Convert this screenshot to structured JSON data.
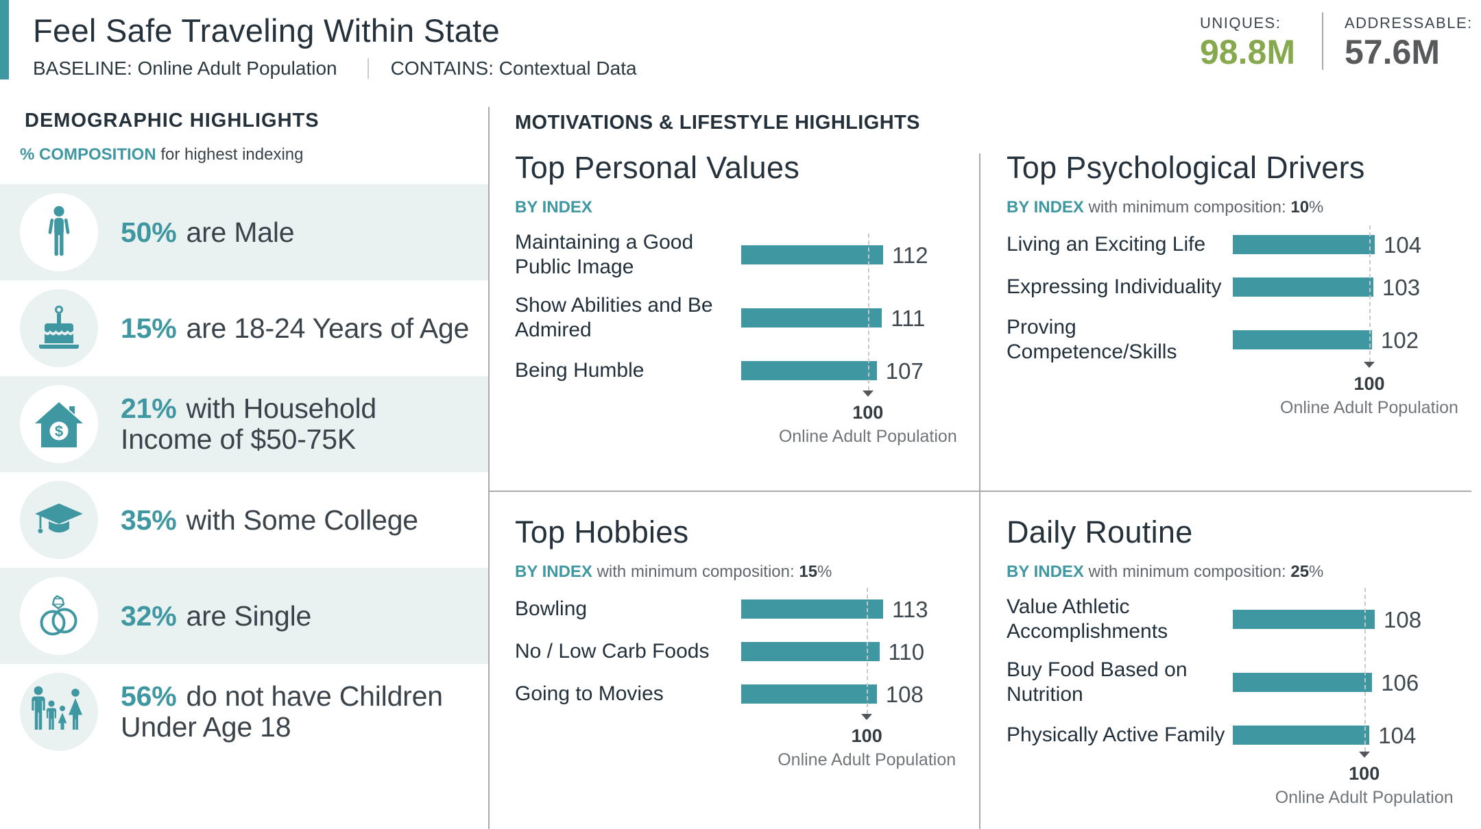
{
  "header": {
    "title": "Feel Safe Traveling Within State",
    "baseline": "BASELINE: Online Adult Population",
    "contains": "CONTAINS: Contextual Data",
    "stats": {
      "uniques_label": "UNIQUES:",
      "uniques_value": "98.8M",
      "uniques_color": "#85A94C",
      "addressable_label": "ADDRESSABLE:",
      "addressable_value": "57.6M",
      "addressable_color": "#58595B"
    }
  },
  "demographics": {
    "heading": "DEMOGRAPHIC HIGHLIGHTS",
    "subheading_emphasis": "% COMPOSITION",
    "subheading_rest": " for highest indexing",
    "rows": [
      {
        "icon": "male-icon",
        "value": "50%",
        "text": "are Male"
      },
      {
        "icon": "birthday-cake-icon",
        "value": "15%",
        "text": "are 18-24 Years of Age"
      },
      {
        "icon": "house-income-icon",
        "value": "21%",
        "text": "with Household\nIncome of $50-75K"
      },
      {
        "icon": "graduation-cap-icon",
        "value": "35%",
        "text": "with Some College"
      },
      {
        "icon": "wedding-rings-icon",
        "value": "32%",
        "text": "are Single"
      },
      {
        "icon": "family-icon",
        "value": "56%",
        "text": "do not have Children\nUnder Age 18"
      }
    ]
  },
  "motivations": {
    "heading": "MOTIVATIONS & LIFESTYLE HIGHLIGHTS",
    "by_index_label": "BY INDEX",
    "min_comp_text": " with minimum composition: ",
    "reference_value": "100",
    "reference_label": "Online Adult Population"
  },
  "chart_data": [
    {
      "type": "bar",
      "title": "Top Personal Values",
      "subtitle": "BY INDEX",
      "min_composition": null,
      "categories": [
        "Maintaining a Good\nPublic Image",
        "Show Abilities and Be\nAdmired",
        "Being Humble"
      ],
      "values": [
        112,
        111,
        107
      ],
      "reference_line": 100,
      "reference_label": "Online Adult Population",
      "bar_color": "#3F97A1",
      "orientation": "horizontal"
    },
    {
      "type": "bar",
      "title": "Top Psychological Drivers",
      "subtitle": "BY INDEX with minimum composition: 10%",
      "min_composition": "10",
      "categories": [
        "Living an Exciting Life",
        "Expressing Individuality",
        "Proving\nCompetence/Skills"
      ],
      "values": [
        104,
        103,
        102
      ],
      "reference_line": 100,
      "reference_label": "Online Adult Population",
      "bar_color": "#3F97A1",
      "orientation": "horizontal"
    },
    {
      "type": "bar",
      "title": "Top Hobbies",
      "subtitle": "BY INDEX with minimum composition: 15%",
      "min_composition": "15",
      "categories": [
        "Bowling",
        "No / Low Carb Foods",
        "Going to Movies"
      ],
      "values": [
        113,
        110,
        108
      ],
      "reference_line": 100,
      "reference_label": "Online Adult Population",
      "bar_color": "#3F97A1",
      "orientation": "horizontal"
    },
    {
      "type": "bar",
      "title": "Daily Routine",
      "subtitle": "BY INDEX with minimum composition: 25%",
      "min_composition": "25",
      "categories": [
        "Value Athletic\nAccomplishments",
        "Buy Food Based on\nNutrition",
        "Physically Active Family"
      ],
      "values": [
        108,
        106,
        104
      ],
      "reference_line": 100,
      "reference_label": "Online Adult Population",
      "bar_color": "#3F97A1",
      "orientation": "horizontal"
    }
  ]
}
